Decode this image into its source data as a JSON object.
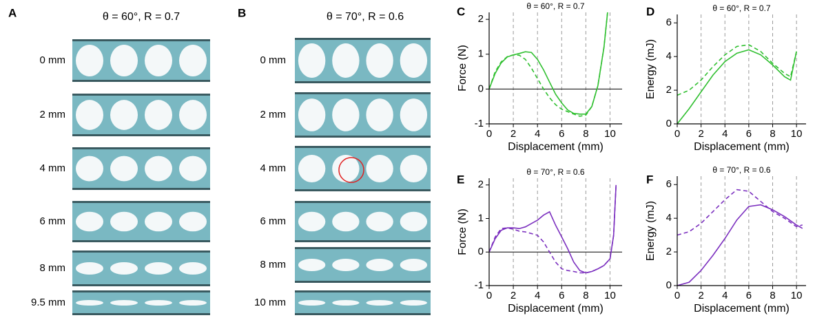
{
  "photo_panels": [
    {
      "label": "A",
      "title": "θ = 60°, R = 0.7",
      "rows": [
        "0 mm",
        "2 mm",
        "4 mm",
        "6 mm",
        "8 mm",
        "9.5 mm"
      ]
    },
    {
      "label": "B",
      "title": "θ = 70°, R = 0.6",
      "rows": [
        "0 mm",
        "2 mm",
        "4 mm",
        "6 mm",
        "8 mm",
        "10 mm"
      ]
    }
  ],
  "chart_data": [
    {
      "type": "line",
      "label": "C",
      "title": "θ = 60°, R = 0.7",
      "x_label": "Displacement (mm)",
      "y_label": "Force (N)",
      "x": [
        0,
        0.5,
        1,
        1.5,
        2,
        2.5,
        3,
        3.5,
        4,
        4.5,
        5,
        5.5,
        6,
        6.5,
        7,
        7.5,
        8,
        8.5,
        9,
        9.5,
        9.8
      ],
      "series": [
        {
          "color": "#2fbf2f",
          "style": "solid",
          "values": [
            0,
            0.45,
            0.75,
            0.92,
            0.98,
            1.02,
            1.07,
            1.05,
            0.85,
            0.55,
            0.2,
            -0.15,
            -0.4,
            -0.6,
            -0.7,
            -0.72,
            -0.72,
            -0.5,
            0.1,
            1.2,
            2.2
          ]
        },
        {
          "color": "#2fbf2f",
          "style": "dashed",
          "values": [
            0,
            0.5,
            0.78,
            0.93,
            0.98,
            0.97,
            0.85,
            0.6,
            0.3,
            0.0,
            -0.25,
            -0.45,
            -0.58,
            -0.65,
            -0.72,
            -0.78,
            -0.75,
            -0.5,
            0.1,
            1.2,
            2.2
          ]
        }
      ],
      "xlim": [
        0,
        11
      ],
      "ylim": [
        -1,
        2.2
      ],
      "xticks": [
        0,
        2,
        4,
        6,
        8,
        10
      ],
      "yticks": [
        -1,
        0,
        1,
        2
      ],
      "grid": "x-dashed",
      "zero_line": true
    },
    {
      "type": "line",
      "label": "D",
      "title": "θ = 60°, R = 0.7",
      "x_label": "Displacement (mm)",
      "y_label": "Energy (mJ)",
      "x": [
        0,
        1,
        2,
        3,
        4,
        5,
        6,
        7,
        8,
        9,
        9.5,
        10
      ],
      "series": [
        {
          "color": "#2fbf2f",
          "style": "solid",
          "values": [
            0,
            0.9,
            1.9,
            2.9,
            3.7,
            4.2,
            4.4,
            4.1,
            3.5,
            2.8,
            2.6,
            4.3
          ]
        },
        {
          "color": "#2fbf2f",
          "style": "dashed",
          "values": [
            1.7,
            2.0,
            2.6,
            3.4,
            4.1,
            4.6,
            4.7,
            4.3,
            3.6,
            3.0,
            2.8,
            4.3
          ]
        }
      ],
      "xlim": [
        0,
        10.8
      ],
      "ylim": [
        0,
        6.5
      ],
      "xticks": [
        0,
        2,
        4,
        6,
        8,
        10
      ],
      "yticks": [
        0,
        2,
        4,
        6
      ],
      "grid": "x-dashed",
      "zero_line": false
    },
    {
      "type": "line",
      "label": "E",
      "title": "θ = 70°, R = 0.6",
      "x_label": "Displacement (mm)",
      "y_label": "Force (N)",
      "x": [
        0,
        0.5,
        1,
        1.5,
        2,
        2.5,
        3,
        3.5,
        4,
        4.5,
        5,
        5.5,
        6,
        6.5,
        7,
        7.5,
        8,
        8.5,
        9,
        9.5,
        10,
        10.3,
        10.5
      ],
      "series": [
        {
          "color": "#7b2fbf",
          "style": "solid",
          "values": [
            0,
            0.4,
            0.65,
            0.72,
            0.72,
            0.7,
            0.75,
            0.85,
            0.95,
            1.1,
            1.2,
            0.8,
            0.45,
            0.1,
            -0.3,
            -0.55,
            -0.62,
            -0.58,
            -0.5,
            -0.4,
            -0.2,
            0.5,
            2.0
          ]
        },
        {
          "color": "#7b2fbf",
          "style": "dashed",
          "values": [
            0,
            0.45,
            0.7,
            0.72,
            0.68,
            0.62,
            0.6,
            0.55,
            0.5,
            0.3,
            0.0,
            -0.3,
            -0.5,
            -0.55,
            -0.58,
            -0.62,
            -0.62,
            -0.58,
            -0.5,
            -0.4,
            -0.2,
            0.5,
            2.0
          ]
        }
      ],
      "xlim": [
        0,
        11
      ],
      "ylim": [
        -1,
        2.2
      ],
      "xticks": [
        0,
        2,
        4,
        6,
        8,
        10
      ],
      "yticks": [
        -1,
        0,
        1,
        2
      ],
      "grid": "x-dashed",
      "zero_line": true
    },
    {
      "type": "line",
      "label": "F",
      "title": "θ = 70°, R = 0.6",
      "x_label": "Displacement (mm)",
      "y_label": "Energy (mJ)",
      "x": [
        0,
        1,
        2,
        3,
        4,
        5,
        6,
        7,
        8,
        9,
        10,
        10.5
      ],
      "series": [
        {
          "color": "#7b2fbf",
          "style": "solid",
          "values": [
            0,
            0.2,
            0.9,
            1.8,
            2.8,
            3.9,
            4.7,
            4.8,
            4.5,
            4.1,
            3.6,
            3.4
          ]
        },
        {
          "color": "#7b2fbf",
          "style": "dashed",
          "values": [
            3.0,
            3.2,
            3.7,
            4.4,
            5.1,
            5.7,
            5.6,
            5.0,
            4.4,
            4.0,
            3.5,
            3.6
          ]
        }
      ],
      "xlim": [
        0,
        10.8
      ],
      "ylim": [
        0,
        6.5
      ],
      "xticks": [
        0,
        2,
        4,
        6,
        8,
        10
      ],
      "yticks": [
        0,
        2,
        4,
        6
      ],
      "grid": "x-dashed",
      "zero_line": false
    }
  ]
}
